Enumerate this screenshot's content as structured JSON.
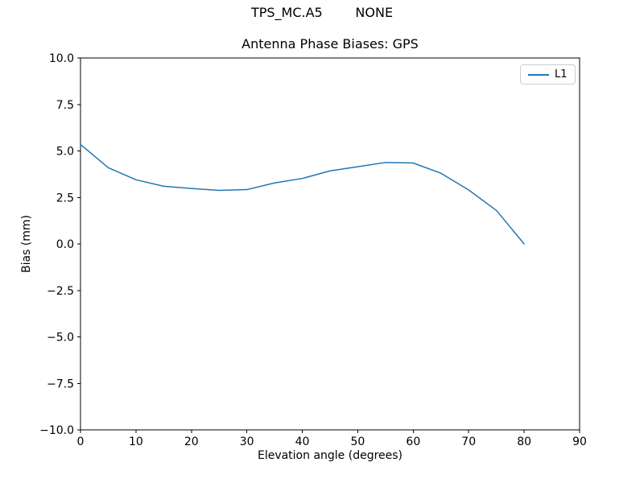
{
  "figure": {
    "suptitle": "TPS_MC.A5        NONE"
  },
  "chart_data": {
    "type": "line",
    "title": "Antenna Phase Biases: GPS",
    "suptitle": "TPS_MC.A5        NONE",
    "xlabel": "Elevation angle (degrees)",
    "ylabel": "Bias (mm)",
    "xlim": [
      0,
      90
    ],
    "ylim": [
      -10,
      10
    ],
    "x_ticks": [
      0,
      10,
      20,
      30,
      40,
      50,
      60,
      70,
      80,
      90
    ],
    "x_tick_labels": [
      "0",
      "10",
      "20",
      "30",
      "40",
      "50",
      "60",
      "70",
      "80",
      "90"
    ],
    "y_ticks": [
      -10.0,
      -7.5,
      -5.0,
      -2.5,
      0.0,
      2.5,
      5.0,
      7.5,
      10.0
    ],
    "y_tick_labels": [
      "−10.0",
      "−7.5",
      "−5.0",
      "−2.5",
      "0.0",
      "2.5",
      "5.0",
      "7.5",
      "10.0"
    ],
    "grid": false,
    "background_color": "#ffffff",
    "spine_color": "#000000",
    "legend": {
      "position": "upper right",
      "entries": [
        {
          "label": "L1",
          "color": "#1f77b4"
        }
      ]
    },
    "series": [
      {
        "name": "L1",
        "color": "#1f77b4",
        "x": [
          0,
          5,
          10,
          15,
          20,
          25,
          30,
          35,
          40,
          45,
          50,
          55,
          60,
          65,
          70,
          75,
          80
        ],
        "y": [
          5.35,
          4.1,
          3.45,
          3.1,
          2.98,
          2.88,
          2.92,
          3.28,
          3.52,
          3.93,
          4.15,
          4.38,
          4.35,
          3.8,
          2.9,
          1.8,
          0.0
        ]
      }
    ]
  }
}
